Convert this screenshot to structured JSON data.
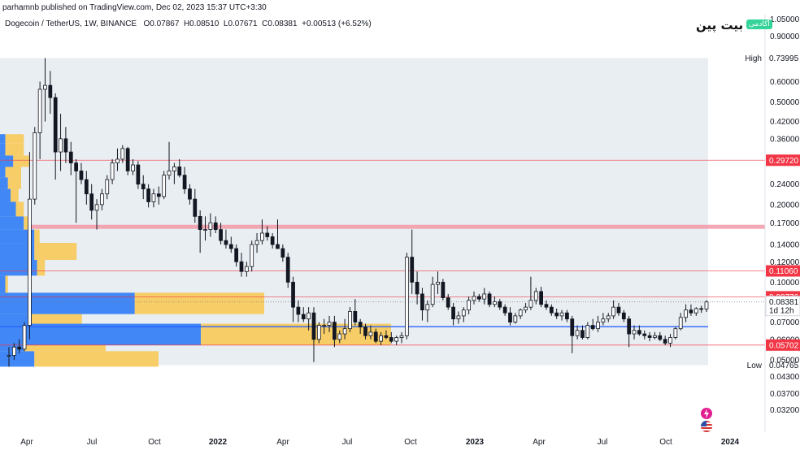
{
  "header": {
    "published_line": "parhamnb published on TradingView.com, Dec 02, 2023 15:37 UTC+3:30"
  },
  "legend": {
    "symbol": "Dogecoin / TetherUS, 1W, BINANCE",
    "open": "O0.07867",
    "high": "H0.08510",
    "low": "L0.07671",
    "close": "C0.08381",
    "change": "+0.00513 (+6.52%)"
  },
  "logo": {
    "brand": "بیت پین",
    "tag": "آکادمی"
  },
  "colors": {
    "background": "#ffffff",
    "range_shade": "#e2e8ee",
    "candle_up": "#ffffff",
    "candle_down": "#131722",
    "level_line": "#f23645",
    "zone": "#f19aa8",
    "support": "#2962ff",
    "profile_blue": "#2f7bf5",
    "profile_yellow": "#f9c74f"
  },
  "icons": [
    "lightning-icon",
    "us-flag-icon"
  ],
  "chart_data": {
    "type": "candlestick",
    "scale": "log",
    "ylim": [
      0.029,
      1.06
    ],
    "y_ticks": [
      "1.05000",
      "0.90000",
      "0.60000",
      "0.50000",
      "0.42000",
      "0.36000",
      "0.24000",
      "0.20000",
      "0.17000",
      "0.14000",
      "0.12000",
      "0.10000",
      "0.07000",
      "0.06000",
      "0.05000",
      "0.04300",
      "0.03700",
      "0.03200"
    ],
    "x_ticks": [
      {
        "label": "Apr",
        "year": false
      },
      {
        "label": "Jul",
        "year": false
      },
      {
        "label": "Oct",
        "year": false
      },
      {
        "label": "2022",
        "year": true
      },
      {
        "label": "Apr",
        "year": false
      },
      {
        "label": "Jul",
        "year": false
      },
      {
        "label": "Oct",
        "year": false
      },
      {
        "label": "2023",
        "year": true
      },
      {
        "label": "Apr",
        "year": false
      },
      {
        "label": "Jul",
        "year": false
      },
      {
        "label": "Oct",
        "year": false
      },
      {
        "label": "2024",
        "year": true
      }
    ],
    "levels": [
      {
        "price": 0.2972,
        "label": "0.29720"
      },
      {
        "price": 0.1106,
        "label": "0.11060"
      },
      {
        "price": 0.08776,
        "label": "0.08776"
      },
      {
        "price": 0.05702,
        "label": "0.05702"
      }
    ],
    "zone": {
      "low": 0.161,
      "high": 0.167
    },
    "support": 0.0672,
    "range": {
      "high_label": "High",
      "high_value": "0.73995",
      "high": 0.73995,
      "low_label": "Low",
      "low_value": "0.04765",
      "low": 0.04765
    },
    "last_price": {
      "value": "0.08381",
      "price": 0.08381,
      "countdown": "1d 12h"
    },
    "volume_profile": [
      {
        "low": 0.047,
        "high": 0.054,
        "blue": 0.13,
        "yellow": 0.47
      },
      {
        "low": 0.054,
        "high": 0.057,
        "blue": 0.09,
        "yellow": 0.31
      },
      {
        "low": 0.057,
        "high": 0.069,
        "blue": 0.76,
        "yellow": 0.72
      },
      {
        "low": 0.069,
        "high": 0.0752,
        "blue": 0.12,
        "yellow": 0.19
      },
      {
        "low": 0.0752,
        "high": 0.091,
        "blue": 0.51,
        "yellow": 0.49
      },
      {
        "low": 0.091,
        "high": 0.106,
        "blue": 0.02,
        "yellow": 0.01
      },
      {
        "low": 0.106,
        "high": 0.122,
        "blue": 0.14,
        "yellow": 0.03
      },
      {
        "low": 0.122,
        "high": 0.142,
        "blue": 0.13,
        "yellow": 0.16
      },
      {
        "low": 0.142,
        "high": 0.16,
        "blue": 0.13,
        "yellow": 0.02
      },
      {
        "low": 0.16,
        "high": 0.18,
        "blue": 0.09,
        "yellow": 0.02
      },
      {
        "low": 0.18,
        "high": 0.205,
        "blue": 0.06,
        "yellow": 0.03
      },
      {
        "low": 0.205,
        "high": 0.23,
        "blue": 0.04,
        "yellow": 0.03
      },
      {
        "low": 0.23,
        "high": 0.255,
        "blue": 0.03,
        "yellow": 0.05
      },
      {
        "low": 0.255,
        "high": 0.28,
        "blue": 0.02,
        "yellow": 0.06
      },
      {
        "low": 0.28,
        "high": 0.31,
        "blue": 0.05,
        "yellow": 0.06
      },
      {
        "low": 0.31,
        "high": 0.345,
        "blue": 0.02,
        "yellow": 0.07
      },
      {
        "low": 0.345,
        "high": 0.375,
        "blue": 0.02,
        "yellow": 0.07
      }
    ],
    "candles": [
      [
        0.052,
        0.056,
        0.047,
        0.052
      ],
      [
        0.052,
        0.058,
        0.05,
        0.056
      ],
      [
        0.056,
        0.06,
        0.053,
        0.055
      ],
      [
        0.055,
        0.07,
        0.054,
        0.068
      ],
      [
        0.068,
        0.32,
        0.06,
        0.21
      ],
      [
        0.21,
        0.4,
        0.2,
        0.38
      ],
      [
        0.38,
        0.6,
        0.3,
        0.56
      ],
      [
        0.56,
        0.74,
        0.42,
        0.58
      ],
      [
        0.58,
        0.66,
        0.45,
        0.52
      ],
      [
        0.52,
        0.54,
        0.25,
        0.32
      ],
      [
        0.32,
        0.45,
        0.27,
        0.36
      ],
      [
        0.36,
        0.4,
        0.29,
        0.32
      ],
      [
        0.32,
        0.35,
        0.26,
        0.29
      ],
      [
        0.29,
        0.3,
        0.17,
        0.27
      ],
      [
        0.27,
        0.29,
        0.24,
        0.25
      ],
      [
        0.25,
        0.27,
        0.2,
        0.22
      ],
      [
        0.22,
        0.24,
        0.175,
        0.19
      ],
      [
        0.19,
        0.21,
        0.16,
        0.2
      ],
      [
        0.2,
        0.23,
        0.19,
        0.22
      ],
      [
        0.22,
        0.26,
        0.21,
        0.25
      ],
      [
        0.25,
        0.3,
        0.24,
        0.29
      ],
      [
        0.29,
        0.33,
        0.27,
        0.3
      ],
      [
        0.3,
        0.34,
        0.29,
        0.33
      ],
      [
        0.33,
        0.335,
        0.26,
        0.27
      ],
      [
        0.27,
        0.3,
        0.26,
        0.285
      ],
      [
        0.285,
        0.295,
        0.23,
        0.24
      ],
      [
        0.24,
        0.26,
        0.21,
        0.23
      ],
      [
        0.23,
        0.24,
        0.195,
        0.205
      ],
      [
        0.205,
        0.23,
        0.195,
        0.22
      ],
      [
        0.22,
        0.235,
        0.2,
        0.215
      ],
      [
        0.215,
        0.27,
        0.21,
        0.26
      ],
      [
        0.26,
        0.35,
        0.25,
        0.27
      ],
      [
        0.27,
        0.29,
        0.24,
        0.28
      ],
      [
        0.28,
        0.3,
        0.255,
        0.26
      ],
      [
        0.26,
        0.28,
        0.22,
        0.23
      ],
      [
        0.23,
        0.24,
        0.2,
        0.21
      ],
      [
        0.21,
        0.23,
        0.17,
        0.18
      ],
      [
        0.18,
        0.19,
        0.13,
        0.16
      ],
      [
        0.16,
        0.18,
        0.145,
        0.16
      ],
      [
        0.16,
        0.185,
        0.15,
        0.17
      ],
      [
        0.17,
        0.18,
        0.155,
        0.16
      ],
      [
        0.16,
        0.17,
        0.14,
        0.145
      ],
      [
        0.145,
        0.16,
        0.135,
        0.14
      ],
      [
        0.14,
        0.15,
        0.13,
        0.135
      ],
      [
        0.135,
        0.14,
        0.115,
        0.12
      ],
      [
        0.12,
        0.13,
        0.105,
        0.11
      ],
      [
        0.11,
        0.12,
        0.105,
        0.115
      ],
      [
        0.115,
        0.145,
        0.11,
        0.14
      ],
      [
        0.14,
        0.155,
        0.13,
        0.145
      ],
      [
        0.145,
        0.175,
        0.14,
        0.155
      ],
      [
        0.155,
        0.165,
        0.145,
        0.15
      ],
      [
        0.15,
        0.155,
        0.135,
        0.14
      ],
      [
        0.14,
        0.175,
        0.135,
        0.135
      ],
      [
        0.135,
        0.14,
        0.12,
        0.125
      ],
      [
        0.125,
        0.13,
        0.095,
        0.1
      ],
      [
        0.1,
        0.105,
        0.07,
        0.08
      ],
      [
        0.08,
        0.085,
        0.07,
        0.075
      ],
      [
        0.075,
        0.08,
        0.07,
        0.072
      ],
      [
        0.072,
        0.08,
        0.065,
        0.076
      ],
      [
        0.076,
        0.08,
        0.049,
        0.06
      ],
      [
        0.06,
        0.07,
        0.058,
        0.068
      ],
      [
        0.068,
        0.072,
        0.063,
        0.068
      ],
      [
        0.068,
        0.074,
        0.064,
        0.07
      ],
      [
        0.07,
        0.074,
        0.056,
        0.06
      ],
      [
        0.06,
        0.065,
        0.058,
        0.063
      ],
      [
        0.063,
        0.072,
        0.06,
        0.066
      ],
      [
        0.066,
        0.08,
        0.064,
        0.077
      ],
      [
        0.077,
        0.086,
        0.068,
        0.07
      ],
      [
        0.07,
        0.072,
        0.063,
        0.067
      ],
      [
        0.067,
        0.069,
        0.06,
        0.062
      ],
      [
        0.062,
        0.068,
        0.06,
        0.064
      ],
      [
        0.064,
        0.066,
        0.058,
        0.059
      ],
      [
        0.059,
        0.064,
        0.057,
        0.062
      ],
      [
        0.062,
        0.065,
        0.06,
        0.061
      ],
      [
        0.061,
        0.064,
        0.058,
        0.059
      ],
      [
        0.059,
        0.062,
        0.057,
        0.061
      ],
      [
        0.061,
        0.064,
        0.058,
        0.062
      ],
      [
        0.062,
        0.13,
        0.06,
        0.125
      ],
      [
        0.125,
        0.16,
        0.09,
        0.1
      ],
      [
        0.1,
        0.11,
        0.082,
        0.09
      ],
      [
        0.09,
        0.095,
        0.071,
        0.078
      ],
      [
        0.078,
        0.085,
        0.07,
        0.082
      ],
      [
        0.082,
        0.105,
        0.08,
        0.098
      ],
      [
        0.098,
        0.11,
        0.09,
        0.1
      ],
      [
        0.1,
        0.103,
        0.085,
        0.087
      ],
      [
        0.087,
        0.09,
        0.078,
        0.08
      ],
      [
        0.08,
        0.083,
        0.068,
        0.072
      ],
      [
        0.072,
        0.077,
        0.069,
        0.074
      ],
      [
        0.074,
        0.08,
        0.07,
        0.078
      ],
      [
        0.078,
        0.088,
        0.075,
        0.085
      ],
      [
        0.085,
        0.092,
        0.082,
        0.088
      ],
      [
        0.088,
        0.09,
        0.084,
        0.086
      ],
      [
        0.086,
        0.095,
        0.082,
        0.09
      ],
      [
        0.09,
        0.092,
        0.08,
        0.082
      ],
      [
        0.082,
        0.088,
        0.08,
        0.084
      ],
      [
        0.084,
        0.086,
        0.078,
        0.08
      ],
      [
        0.08,
        0.082,
        0.074,
        0.076
      ],
      [
        0.076,
        0.08,
        0.068,
        0.07
      ],
      [
        0.07,
        0.076,
        0.069,
        0.074
      ],
      [
        0.074,
        0.079,
        0.072,
        0.078
      ],
      [
        0.078,
        0.083,
        0.076,
        0.08
      ],
      [
        0.08,
        0.105,
        0.078,
        0.085
      ],
      [
        0.085,
        0.095,
        0.082,
        0.092
      ],
      [
        0.092,
        0.096,
        0.08,
        0.082
      ],
      [
        0.082,
        0.085,
        0.078,
        0.08
      ],
      [
        0.08,
        0.082,
        0.074,
        0.076
      ],
      [
        0.076,
        0.079,
        0.072,
        0.074
      ],
      [
        0.074,
        0.078,
        0.071,
        0.076
      ],
      [
        0.076,
        0.078,
        0.07,
        0.072
      ],
      [
        0.072,
        0.074,
        0.053,
        0.062
      ],
      [
        0.062,
        0.068,
        0.06,
        0.065
      ],
      [
        0.065,
        0.068,
        0.06,
        0.061
      ],
      [
        0.061,
        0.07,
        0.06,
        0.068
      ],
      [
        0.068,
        0.072,
        0.065,
        0.066
      ],
      [
        0.066,
        0.074,
        0.064,
        0.07
      ],
      [
        0.07,
        0.076,
        0.068,
        0.072
      ],
      [
        0.072,
        0.076,
        0.07,
        0.074
      ],
      [
        0.074,
        0.085,
        0.072,
        0.08
      ],
      [
        0.08,
        0.083,
        0.074,
        0.076
      ],
      [
        0.076,
        0.078,
        0.07,
        0.072
      ],
      [
        0.072,
        0.074,
        0.056,
        0.063
      ],
      [
        0.063,
        0.068,
        0.06,
        0.065
      ],
      [
        0.065,
        0.068,
        0.062,
        0.063
      ],
      [
        0.063,
        0.065,
        0.06,
        0.062
      ],
      [
        0.062,
        0.064,
        0.059,
        0.061
      ],
      [
        0.061,
        0.064,
        0.06,
        0.062
      ],
      [
        0.062,
        0.064,
        0.059,
        0.06
      ],
      [
        0.06,
        0.062,
        0.057,
        0.058
      ],
      [
        0.058,
        0.063,
        0.056,
        0.061
      ],
      [
        0.061,
        0.067,
        0.06,
        0.066
      ],
      [
        0.066,
        0.076,
        0.065,
        0.073
      ],
      [
        0.073,
        0.082,
        0.07,
        0.078
      ],
      [
        0.078,
        0.082,
        0.074,
        0.076
      ],
      [
        0.076,
        0.08,
        0.074,
        0.079
      ],
      [
        0.079,
        0.081,
        0.076,
        0.0787
      ],
      [
        0.0787,
        0.0851,
        0.0767,
        0.0838
      ]
    ]
  }
}
